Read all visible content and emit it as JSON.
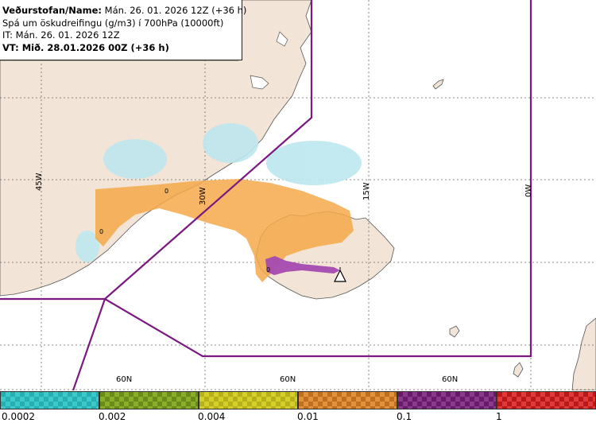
{
  "header": {
    "line1_bold": "Veðurstofan/Name:",
    "line1_rest": " Mán. 26. 01. 2026 12Z (+36 h)",
    "line2": "Spá um öskudreifingu (g/m3) í 700hPa (10000ft)",
    "line3": "IT: Mán. 26. 01. 2026 12Z",
    "line4": "VT: Mið. 28.01.2026 00Z (+36 h)"
  },
  "map_labels": {
    "lon_45w": "45W",
    "lon_30w": "30W",
    "lon_15w": "15W",
    "lon_0w": "0W",
    "lat_60n_a": "60N",
    "lat_60n_b": "60N",
    "lat_60n_c": "60N",
    "contour_zero_1": "0",
    "contour_zero_2": "0",
    "contour_zero_3": "0"
  },
  "legend": {
    "ticks": [
      "0.0002",
      "0.002",
      "0.004",
      "0.01",
      "0.1",
      "1"
    ],
    "colors": [
      "#3cc9c9",
      "#7a9e1e",
      "#c9c21e",
      "#d9862c",
      "#7a2a7a",
      "#d92a2a"
    ]
  },
  "colors": {
    "land": "#f2e4d6",
    "sea": "#ffffff",
    "fir_boundary": "#7a1a80",
    "ash_low": "#f5a94a",
    "ash_high": "#a44ab0"
  },
  "icons": {
    "volcano": "volcano-triangle-icon"
  }
}
